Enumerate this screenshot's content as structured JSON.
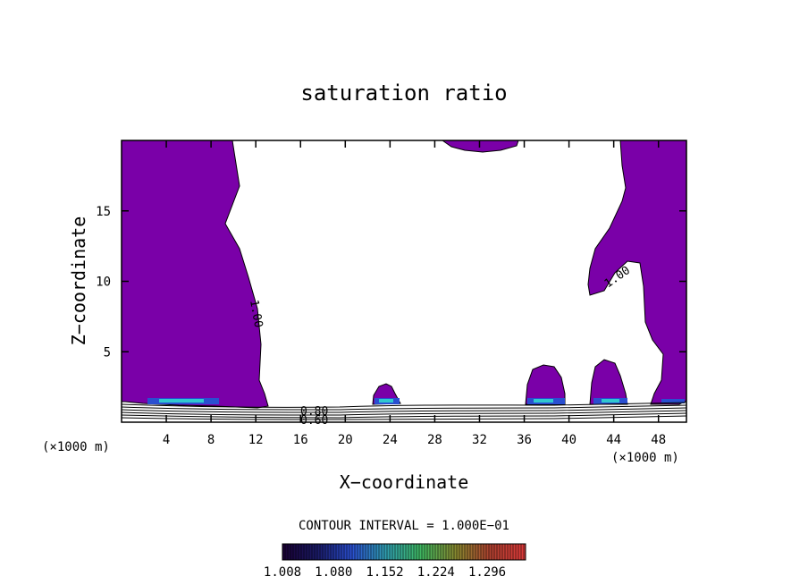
{
  "chart_data": {
    "type": "contour",
    "title": "saturation ratio",
    "xlabel": "X−coordinate",
    "ylabel": "Z−coordinate",
    "x_unit_left": "(×1000 m)",
    "x_unit_right": "(×1000 m)",
    "xlim": [
      0,
      50.5
    ],
    "ylim": [
      0,
      20
    ],
    "x_ticks": [
      4,
      8,
      12,
      16,
      20,
      24,
      28,
      32,
      36,
      40,
      44,
      48
    ],
    "y_ticks": [
      5,
      10,
      15
    ],
    "contour_interval_text": "CONTOUR INTERVAL = 1.000E−01",
    "contour_labels": [
      "1.00",
      "1.00",
      "0.80",
      "0.60"
    ],
    "colorbar": {
      "ticks": [
        "1.008",
        "1.080",
        "1.152",
        "1.224",
        "1.296"
      ],
      "colors": [
        "#1a0033",
        "#1a1a66",
        "#2a4fd0",
        "#30a0b0",
        "#3fb860",
        "#8a8a30",
        "#b04030",
        "#e03a3a"
      ]
    },
    "fill_color": "#7a00a8",
    "supersaturated_regions": [
      {
        "name": "left-column",
        "x": [
          0,
          13
        ],
        "z": [
          1.3,
          20
        ]
      },
      {
        "name": "right-column",
        "x": [
          41.5,
          50.5
        ],
        "z": [
          1.3,
          20
        ]
      },
      {
        "name": "top-cap",
        "x": [
          29,
          34.5
        ],
        "z": [
          19.2,
          20
        ]
      },
      {
        "name": "cell-23km",
        "x": [
          22.2,
          24.8
        ],
        "z": [
          1.2,
          2.6
        ]
      },
      {
        "name": "cell-37km",
        "x": [
          35.8,
          39.7
        ],
        "z": [
          1.2,
          4.0
        ]
      },
      {
        "name": "cell-42km",
        "x": [
          42,
          45
        ],
        "z": [
          1.2,
          4.3
        ]
      }
    ]
  }
}
